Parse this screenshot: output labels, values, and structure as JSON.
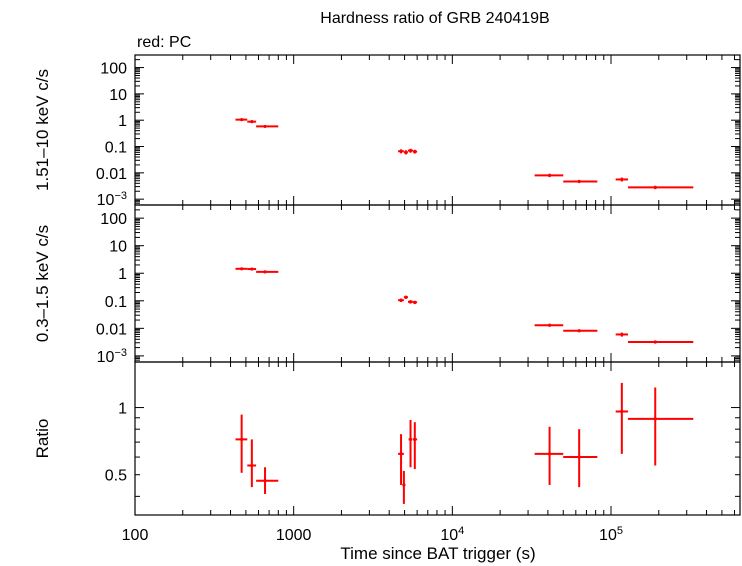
{
  "chart_data": {
    "type": "scatter",
    "title": "Hardness ratio of GRB 240419B",
    "subtitle": "red: PC",
    "xlabel": "Time since BAT trigger (s)",
    "x_scale": "log",
    "xlim": [
      100,
      650000
    ],
    "x_ticks": [
      {
        "value": 100,
        "label": "100"
      },
      {
        "value": 1000,
        "label": "1000"
      },
      {
        "value": 10000,
        "label": "10",
        "sup": "4"
      },
      {
        "value": 100000,
        "label": "10",
        "sup": "5"
      }
    ],
    "series_color": "#ff0000",
    "panels": [
      {
        "id": "hard",
        "ylabel": "1.51–10 keV c/s",
        "y_scale": "log",
        "ylim": [
          0.0006,
          300
        ],
        "y_ticks": [
          {
            "value": 100,
            "label": "100"
          },
          {
            "value": 10,
            "label": "10"
          },
          {
            "value": 1,
            "label": "1"
          },
          {
            "value": 0.1,
            "label": "0.1"
          },
          {
            "value": 0.01,
            "label": "0.01"
          },
          {
            "value": 0.001,
            "label": "10",
            "sup": "−3"
          }
        ],
        "points": [
          {
            "x": 470,
            "xlo": 430,
            "xhi": 510,
            "y": 1.05,
            "ylo": 0.95,
            "yhi": 1.15
          },
          {
            "x": 545,
            "xlo": 510,
            "xhi": 580,
            "y": 0.88,
            "ylo": 0.78,
            "yhi": 0.98
          },
          {
            "x": 660,
            "xlo": 580,
            "xhi": 800,
            "y": 0.58,
            "ylo": 0.52,
            "yhi": 0.64
          },
          {
            "x": 4750,
            "xlo": 4550,
            "xhi": 4950,
            "y": 0.066,
            "ylo": 0.055,
            "yhi": 0.078
          },
          {
            "x": 5100,
            "xlo": 4950,
            "xhi": 5250,
            "y": 0.06,
            "ylo": 0.05,
            "yhi": 0.072
          },
          {
            "x": 5450,
            "xlo": 5250,
            "xhi": 5650,
            "y": 0.07,
            "ylo": 0.058,
            "yhi": 0.082
          },
          {
            "x": 5800,
            "xlo": 5650,
            "xhi": 6000,
            "y": 0.064,
            "ylo": 0.054,
            "yhi": 0.075
          },
          {
            "x": 41000,
            "xlo": 33000,
            "xhi": 50000,
            "y": 0.008,
            "ylo": 0.0069,
            "yhi": 0.0092
          },
          {
            "x": 63000,
            "xlo": 50000,
            "xhi": 82000,
            "y": 0.0047,
            "ylo": 0.0041,
            "yhi": 0.0054
          },
          {
            "x": 117000,
            "xlo": 107000,
            "xhi": 128000,
            "y": 0.0056,
            "ylo": 0.0047,
            "yhi": 0.0066
          },
          {
            "x": 190000,
            "xlo": 128000,
            "xhi": 330000,
            "y": 0.0028,
            "ylo": 0.0024,
            "yhi": 0.0032
          }
        ]
      },
      {
        "id": "soft",
        "ylabel": "0.3–1.5 keV c/s",
        "y_scale": "log",
        "ylim": [
          0.0006,
          300
        ],
        "y_ticks": [
          {
            "value": 100,
            "label": "100"
          },
          {
            "value": 10,
            "label": "10"
          },
          {
            "value": 1,
            "label": "1"
          },
          {
            "value": 0.1,
            "label": "0.1"
          },
          {
            "value": 0.01,
            "label": "0.01"
          },
          {
            "value": 0.001,
            "label": "10",
            "sup": "−3"
          }
        ],
        "points": [
          {
            "x": 470,
            "xlo": 430,
            "xhi": 510,
            "y": 1.45,
            "ylo": 1.32,
            "yhi": 1.58
          },
          {
            "x": 545,
            "xlo": 510,
            "xhi": 580,
            "y": 1.42,
            "ylo": 1.3,
            "yhi": 1.55
          },
          {
            "x": 660,
            "xlo": 580,
            "xhi": 800,
            "y": 1.12,
            "ylo": 1.03,
            "yhi": 1.21
          },
          {
            "x": 4750,
            "xlo": 4550,
            "xhi": 4950,
            "y": 0.105,
            "ylo": 0.09,
            "yhi": 0.12
          },
          {
            "x": 5100,
            "xlo": 4950,
            "xhi": 5250,
            "y": 0.135,
            "ylo": 0.118,
            "yhi": 0.152
          },
          {
            "x": 5450,
            "xlo": 5250,
            "xhi": 5650,
            "y": 0.092,
            "ylo": 0.079,
            "yhi": 0.105
          },
          {
            "x": 5800,
            "xlo": 5650,
            "xhi": 6000,
            "y": 0.088,
            "ylo": 0.076,
            "yhi": 0.1
          },
          {
            "x": 41000,
            "xlo": 33000,
            "xhi": 50000,
            "y": 0.013,
            "ylo": 0.0115,
            "yhi": 0.0145
          },
          {
            "x": 63000,
            "xlo": 50000,
            "xhi": 82000,
            "y": 0.0082,
            "ylo": 0.0073,
            "yhi": 0.0091
          },
          {
            "x": 117000,
            "xlo": 107000,
            "xhi": 128000,
            "y": 0.006,
            "ylo": 0.005,
            "yhi": 0.007
          },
          {
            "x": 190000,
            "xlo": 128000,
            "xhi": 330000,
            "y": 0.0032,
            "ylo": 0.0028,
            "yhi": 0.0036
          }
        ]
      },
      {
        "id": "ratio",
        "ylabel": "Ratio",
        "y_scale": "log",
        "ylim": [
          0.33,
          1.6
        ],
        "y_ticks": [
          {
            "value": 1,
            "label": "1"
          },
          {
            "value": 0.5,
            "label": "0.5"
          }
        ],
        "points": [
          {
            "x": 470,
            "xlo": 430,
            "xhi": 510,
            "y": 0.72,
            "ylo": 0.51,
            "yhi": 0.93
          },
          {
            "x": 545,
            "xlo": 510,
            "xhi": 580,
            "y": 0.55,
            "ylo": 0.44,
            "yhi": 0.72
          },
          {
            "x": 660,
            "xlo": 580,
            "xhi": 800,
            "y": 0.47,
            "ylo": 0.41,
            "yhi": 0.54
          },
          {
            "x": 4750,
            "xlo": 4550,
            "xhi": 4950,
            "y": 0.62,
            "ylo": 0.45,
            "yhi": 0.76
          },
          {
            "x": 4950,
            "xlo": 4850,
            "xhi": 5050,
            "y": 0.45,
            "ylo": 0.37,
            "yhi": 0.52
          },
          {
            "x": 5450,
            "xlo": 5300,
            "xhi": 5600,
            "y": 0.72,
            "ylo": 0.54,
            "yhi": 0.88
          },
          {
            "x": 5800,
            "xlo": 5650,
            "xhi": 6000,
            "y": 0.72,
            "ylo": 0.53,
            "yhi": 0.86
          },
          {
            "x": 41000,
            "xlo": 33000,
            "xhi": 50000,
            "y": 0.62,
            "ylo": 0.45,
            "yhi": 0.82
          },
          {
            "x": 63000,
            "xlo": 50000,
            "xhi": 82000,
            "y": 0.6,
            "ylo": 0.44,
            "yhi": 0.8
          },
          {
            "x": 117000,
            "xlo": 107000,
            "xhi": 128000,
            "y": 0.96,
            "ylo": 0.62,
            "yhi": 1.29
          },
          {
            "x": 190000,
            "xlo": 128000,
            "xhi": 330000,
            "y": 0.89,
            "ylo": 0.55,
            "yhi": 1.23
          }
        ]
      }
    ]
  }
}
